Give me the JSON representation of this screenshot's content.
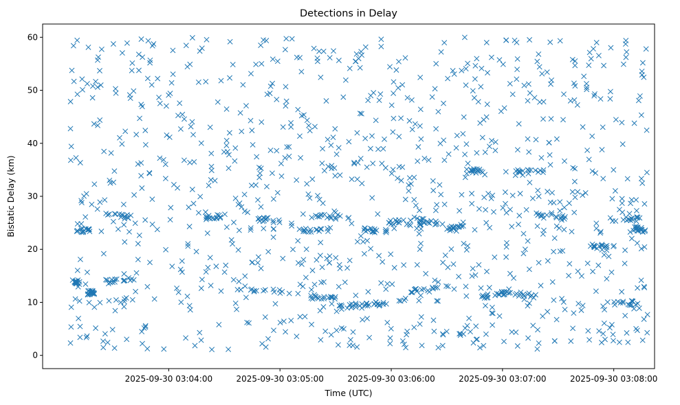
{
  "chart_data": {
    "type": "scatter",
    "title": "Detections in Delay",
    "xlabel": "Time (UTC)",
    "ylabel": "Bistatic Delay (km)",
    "marker": "x",
    "color": "#1f77b4",
    "grid": false,
    "legend": "none",
    "xlim": [
      "2025-09-30 03:02:52",
      "2025-09-30 03:08:22"
    ],
    "ylim": [
      -2.5,
      62.5
    ],
    "x_ticks": [
      "2025-09-30 03:04:00",
      "2025-09-30 03:05:00",
      "2025-09-30 03:06:00",
      "2025-09-30 03:07:00",
      "2025-09-30 03:08:00"
    ],
    "y_ticks": [
      0,
      10,
      20,
      30,
      40,
      50,
      60
    ],
    "tracks": [
      {
        "from": "2025-09-30 03:03:08",
        "to": "2025-09-30 03:03:12",
        "y_from": 13.8,
        "y_to": 13.8
      },
      {
        "from": "2025-09-30 03:03:16",
        "to": "2025-09-30 03:03:20",
        "y_from": 11.8,
        "y_to": 11.8
      },
      {
        "from": "2025-09-30 03:03:26",
        "to": "2025-09-30 03:03:42",
        "y_from": 13.9,
        "y_to": 14.5
      },
      {
        "from": "2025-09-30 03:03:10",
        "to": "2025-09-30 03:03:18",
        "y_from": 23.5,
        "y_to": 23.7
      },
      {
        "from": "2025-09-30 03:03:26",
        "to": "2025-09-30 03:03:40",
        "y_from": 26.5,
        "y_to": 26.1
      },
      {
        "from": "2025-09-30 03:04:20",
        "to": "2025-09-30 03:04:32",
        "y_from": 26.0,
        "y_to": 26.2
      },
      {
        "from": "2025-09-30 03:04:35",
        "to": "2025-09-30 03:05:12",
        "y_from": 12.2,
        "y_to": 11.9
      },
      {
        "from": "2025-09-30 03:04:48",
        "to": "2025-09-30 03:05:02",
        "y_from": 25.8,
        "y_to": 25.3
      },
      {
        "from": "2025-09-30 03:05:10",
        "to": "2025-09-30 03:05:26",
        "y_from": 23.6,
        "y_to": 23.6
      },
      {
        "from": "2025-09-30 03:05:16",
        "to": "2025-09-30 03:05:38",
        "y_from": 26.4,
        "y_to": 26.0
      },
      {
        "from": "2025-09-30 03:05:16",
        "to": "2025-09-30 03:05:30",
        "y_from": 11.0,
        "y_to": 11.0
      },
      {
        "from": "2025-09-30 03:05:31",
        "to": "2025-09-30 03:05:47",
        "y_from": 9.0,
        "y_to": 9.6
      },
      {
        "from": "2025-09-30 03:05:45",
        "to": "2025-09-30 03:06:08",
        "y_from": 9.7,
        "y_to": 10.4
      },
      {
        "from": "2025-09-30 03:05:45",
        "to": "2025-09-30 03:05:58",
        "y_from": 23.6,
        "y_to": 23.6
      },
      {
        "from": "2025-09-30 03:05:58",
        "to": "2025-09-30 03:06:16",
        "y_from": 25.2,
        "y_to": 25.0
      },
      {
        "from": "2025-09-30 03:06:10",
        "to": "2025-09-30 03:06:25",
        "y_from": 12.1,
        "y_to": 12.5
      },
      {
        "from": "2025-09-30 03:06:10",
        "to": "2025-09-30 03:06:28",
        "y_from": 26.0,
        "y_to": 24.6
      },
      {
        "from": "2025-09-30 03:06:30",
        "to": "2025-09-30 03:06:40",
        "y_from": 23.6,
        "y_to": 25.0
      },
      {
        "from": "2025-09-30 03:06:40",
        "to": "2025-09-30 03:06:50",
        "y_from": 34.7,
        "y_to": 34.9
      },
      {
        "from": "2025-09-30 03:06:48",
        "to": "2025-09-30 03:07:05",
        "y_from": 11.1,
        "y_to": 11.9
      },
      {
        "from": "2025-09-30 03:07:00",
        "to": "2025-09-30 03:07:18",
        "y_from": 11.8,
        "y_to": 11.4
      },
      {
        "from": "2025-09-30 03:07:07",
        "to": "2025-09-30 03:07:24",
        "y_from": 34.6,
        "y_to": 34.6
      },
      {
        "from": "2025-09-30 03:07:18",
        "to": "2025-09-30 03:07:35",
        "y_from": 26.5,
        "y_to": 25.8
      },
      {
        "from": "2025-09-30 03:07:45",
        "to": "2025-09-30 03:08:02",
        "y_from": 20.5,
        "y_to": 20.8
      },
      {
        "from": "2025-09-30 03:07:58",
        "to": "2025-09-30 03:08:14",
        "y_from": 25.6,
        "y_to": 25.7
      },
      {
        "from": "2025-09-30 03:08:00",
        "to": "2025-09-30 03:08:14",
        "y_from": 9.9,
        "y_to": 9.9
      },
      {
        "from": "2025-09-30 03:08:10",
        "to": "2025-09-30 03:08:18",
        "y_from": 24.0,
        "y_to": 23.6
      }
    ],
    "track_point_count": 420,
    "clutter_point_count": 980,
    "clutter_y_range": [
      1,
      60
    ]
  }
}
